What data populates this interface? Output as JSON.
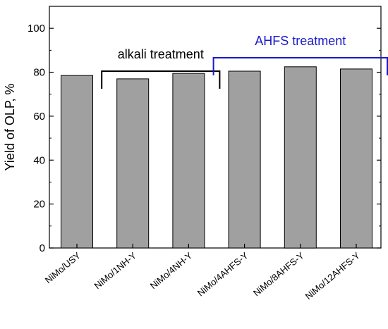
{
  "chart_data": {
    "type": "bar",
    "categories": [
      "NiMo/USY",
      "NiMo/1NH-Y",
      "NiMo/4NH-Y",
      "NiMo/4AHFS-Y",
      "NiMo/8AHFS-Y",
      "NiMo/12AHFS-Y"
    ],
    "values": [
      78.5,
      77.0,
      79.5,
      80.5,
      82.5,
      81.5
    ],
    "ylabel": "Yield of OLP, %",
    "xlabel": "",
    "ylim": [
      0,
      110
    ],
    "yticks": [
      0,
      20,
      40,
      60,
      80,
      100
    ],
    "grid": false,
    "bar_color": "#a0a0a0",
    "annotations": [
      {
        "text": "alkali treatment",
        "spans": [
          "NiMo/1NH-Y",
          "NiMo/4NH-Y"
        ],
        "color": "#000000"
      },
      {
        "text": "AHFS treatment",
        "spans": [
          "NiMo/4AHFS-Y",
          "NiMo/12AHFS-Y"
        ],
        "color": "#1a1acc"
      }
    ]
  }
}
